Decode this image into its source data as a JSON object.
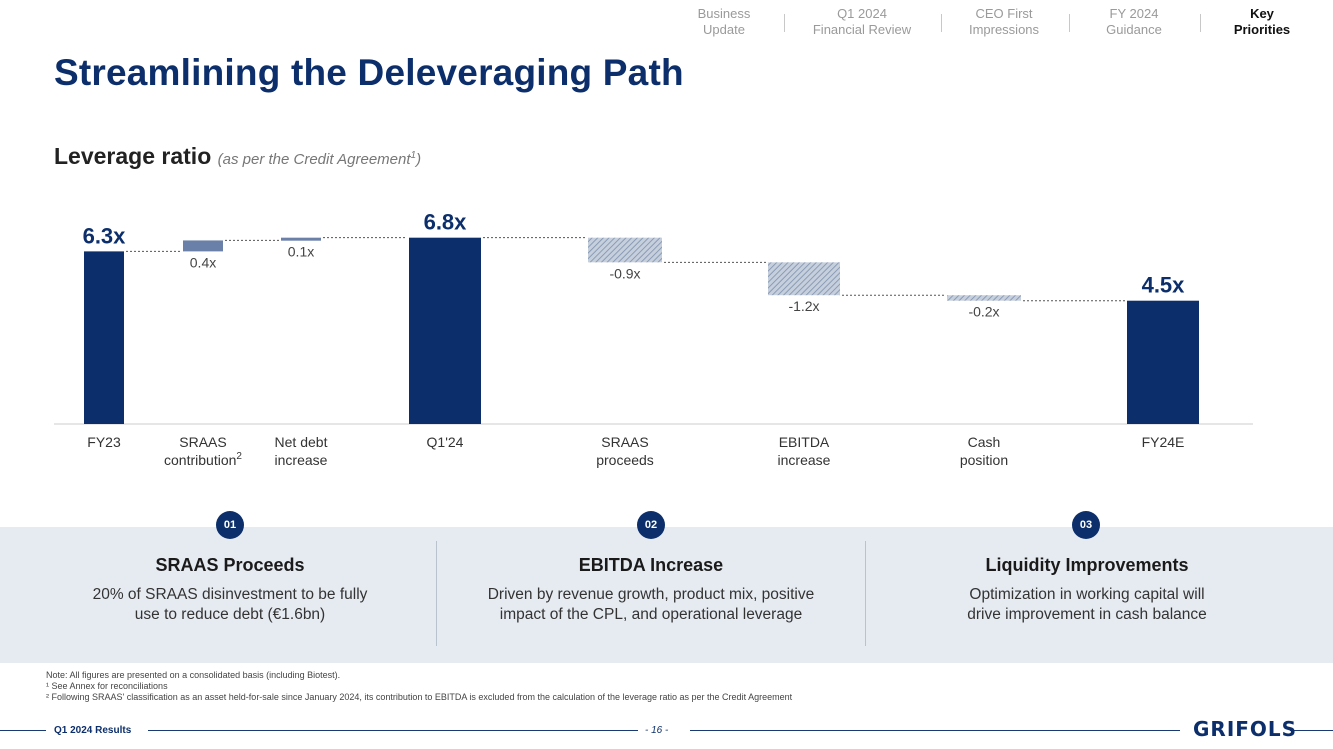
{
  "nav": {
    "items": [
      {
        "line1": "Business",
        "line2": "Update"
      },
      {
        "line1": "Q1 2024",
        "line2": "Financial Review"
      },
      {
        "line1": "CEO First",
        "line2": "Impressions"
      },
      {
        "line1": "FY 2024",
        "line2": "Guidance"
      },
      {
        "line1": "Key",
        "line2": "Priorities"
      }
    ],
    "active_index": 4
  },
  "title": "Streamlining the Deleveraging Path",
  "subtitle": {
    "main": "Leverage ratio",
    "note": "(as per the Credit Agreement",
    "sup": "1",
    "close": ")"
  },
  "chart_data": {
    "type": "bar",
    "subtype": "waterfall",
    "categories": [
      {
        "label": "FY23",
        "line2": ""
      },
      {
        "label": "SRAAS",
        "line2": "contribution",
        "sup": "2"
      },
      {
        "label": "Net debt",
        "line2": "increase"
      },
      {
        "label": "Q1'24",
        "line2": ""
      },
      {
        "label": "SRAAS",
        "line2": "proceeds"
      },
      {
        "label": "EBITDA",
        "line2": "increase"
      },
      {
        "label": "Cash",
        "line2": "position"
      },
      {
        "label": "FY24E",
        "line2": ""
      }
    ],
    "values": [
      6.3,
      0.4,
      0.1,
      6.8,
      -0.9,
      -1.2,
      -0.2,
      4.5
    ],
    "kinds": [
      "total",
      "delta",
      "delta",
      "total",
      "delta",
      "delta",
      "delta",
      "total"
    ],
    "data_labels": [
      "6.3x",
      "0.4x",
      "0.1x",
      "6.8x",
      "-0.9x",
      "-1.2x",
      "-0.2x",
      "4.5x"
    ],
    "ylim": [
      0,
      7
    ],
    "colors": {
      "total": "#0c2f6b",
      "increase": "#6b80a8",
      "decrease": "#a8b4c8"
    }
  },
  "priorities": [
    {
      "num": "01",
      "title": "SRAAS Proceeds",
      "text1": "20% of SRAAS disinvestment to be fully",
      "text2": "use to reduce debt (€1.6bn)"
    },
    {
      "num": "02",
      "title": "EBITDA Increase",
      "text1": "Driven by revenue growth, product mix, positive",
      "text2": "impact of the CPL, and operational leverage"
    },
    {
      "num": "03",
      "title": "Liquidity Improvements",
      "text1": "Optimization in working capital will",
      "text2": "drive improvement in cash balance"
    }
  ],
  "notes": {
    "line1": "Note: All figures are presented on a consolidated basis (including Biotest).",
    "line2": "¹ See Annex for reconciliations",
    "line3": "² Following SRAAS' classification as an asset held-for-sale since January 2024, its contribution to EBITDA is excluded from the calculation of the leverage ratio as per the Credit Agreement"
  },
  "footer": {
    "left": "Q1 2024 Results",
    "page": "- 16 -",
    "logo": "GRIFOLS"
  }
}
